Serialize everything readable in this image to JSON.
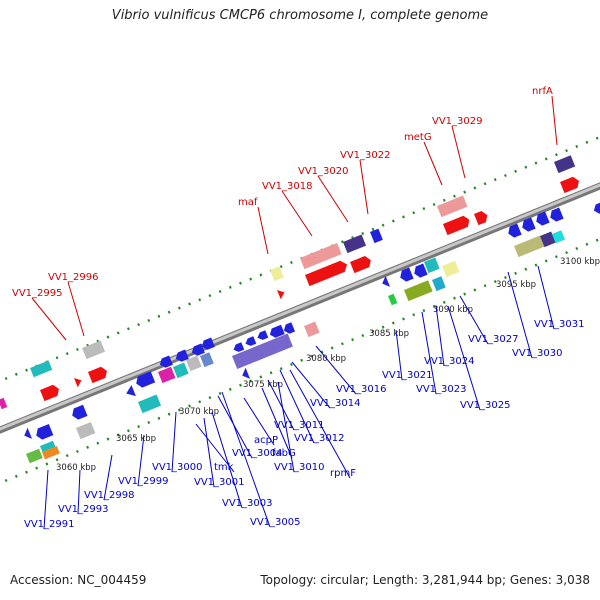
{
  "title": "Vibrio vulnificus CMCP6 chromosome I, complete genome",
  "footer": {
    "accession": "Accession: NC_004459",
    "topology": "Topology: circular; Length: 3,281,944 bp; Genes: 3,038"
  },
  "colors": {
    "label_top": "#cc0000",
    "label_bottom": "#0000cc",
    "backbone": "#999999",
    "tick": "#228822"
  },
  "kbp_ticks": [
    "3060 kbp",
    "3065 kbp",
    "3070 kbp",
    "3075 kbp",
    "3080 kbp",
    "3085 kbp",
    "3090 kbp",
    "3095 kbp",
    "3100 kbp"
  ],
  "top_labels": [
    "VV1_2995",
    "VV1_2996",
    "maf",
    "VV1_3018",
    "VV1_3020",
    "VV1_3022",
    "metG",
    "VV1_3029",
    "nrfA"
  ],
  "bottom_labels": [
    "VV1_2991",
    "VV1_2993",
    "VV1_2998",
    "VV1_2999",
    "VV1_3000",
    "tmk",
    "VV1_3001",
    "VV1_3003",
    "VV1_3004",
    "VV1_3005",
    "acpP",
    "fabG",
    "VV1_3011",
    "VV1_3010",
    "VV1_3012",
    "rpmF",
    "VV1_3014",
    "VV1_3016",
    "VV1_3021",
    "VV1_3023",
    "VV1_3024",
    "VV1_3025",
    "VV1_3027",
    "VV1_3030",
    "VV1_3031"
  ]
}
